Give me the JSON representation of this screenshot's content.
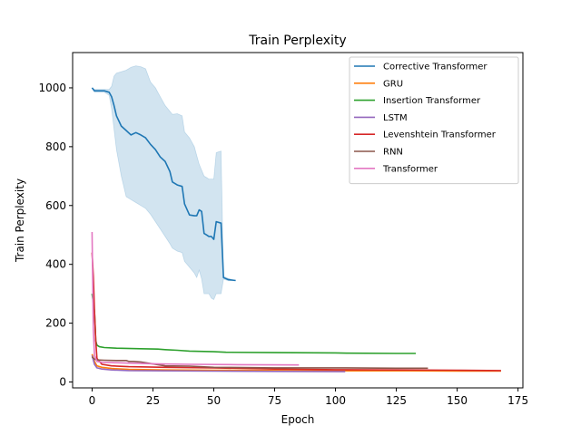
{
  "chart_data": {
    "type": "line",
    "title": "Train Perplexity",
    "xlabel": "Epoch",
    "ylabel": "Train Perplexity",
    "xlim": [
      -8,
      177
    ],
    "ylim": [
      -20,
      1120
    ],
    "xticks": [
      0,
      25,
      50,
      75,
      100,
      125,
      150,
      175
    ],
    "yticks": [
      0,
      200,
      400,
      600,
      800,
      1000
    ],
    "grid": false,
    "legend_position": "top-right",
    "series": [
      {
        "name": "Corrective Transformer",
        "color": "#1f77b4",
        "x": [
          0,
          1,
          3,
          5,
          7,
          8,
          9,
          10,
          12,
          14,
          16,
          18,
          20,
          22,
          24,
          26,
          28,
          30,
          32,
          33,
          35,
          37,
          38,
          40,
          42,
          43,
          44,
          45,
          46,
          47,
          48,
          49,
          50,
          51,
          53,
          54,
          56,
          59
        ],
        "y": [
          1000,
          990,
          990,
          990,
          985,
          970,
          940,
          905,
          870,
          855,
          840,
          848,
          840,
          830,
          808,
          790,
          765,
          750,
          715,
          680,
          670,
          665,
          605,
          568,
          565,
          565,
          585,
          580,
          505,
          500,
          495,
          495,
          485,
          545,
          540,
          355,
          348,
          345
        ],
        "band_upper": [
          1000,
          995,
          995,
          995,
          995,
          1005,
          1040,
          1050,
          1055,
          1060,
          1070,
          1075,
          1072,
          1065,
          1020,
          1000,
          970,
          940,
          920,
          910,
          912,
          905,
          850,
          830,
          800,
          770,
          740,
          720,
          700,
          695,
          690,
          690,
          690,
          780,
          785,
          360,
          352,
          345
        ],
        "band_lower": [
          1000,
          985,
          985,
          985,
          975,
          930,
          860,
          790,
          700,
          630,
          620,
          610,
          600,
          590,
          570,
          545,
          520,
          495,
          470,
          455,
          445,
          440,
          410,
          390,
          370,
          355,
          380,
          350,
          300,
          300,
          300,
          285,
          280,
          300,
          300,
          350,
          344,
          345
        ]
      },
      {
        "name": "GRU",
        "color": "#ff7f0e",
        "x": [
          0,
          1,
          2,
          4,
          8,
          15,
          30,
          50,
          80,
          100,
          130,
          150,
          168
        ],
        "y": [
          95,
          70,
          55,
          50,
          46,
          43,
          41,
          40,
          39,
          38,
          38,
          37,
          37
        ]
      },
      {
        "name": "Insertion Transformer",
        "color": "#2ca02c",
        "x": [
          0,
          1,
          1.5,
          2,
          3,
          5,
          10,
          20,
          27,
          30,
          35,
          40,
          50,
          55,
          75,
          100,
          105,
          125,
          133
        ],
        "y": [
          300,
          240,
          140,
          125,
          120,
          117,
          115,
          113,
          112,
          110,
          108,
          105,
          103,
          101,
          100,
          99,
          98,
          97,
          97
        ]
      },
      {
        "name": "LSTM",
        "color": "#9467bd",
        "x": [
          0,
          1,
          2,
          4,
          8,
          15,
          30,
          50,
          75,
          104
        ],
        "y": [
          90,
          60,
          48,
          44,
          41,
          39,
          38,
          37,
          36,
          35
        ]
      },
      {
        "name": "Levenshtein Transformer",
        "color": "#d62728",
        "x": [
          0,
          0.5,
          1,
          1.5,
          2,
          4,
          8,
          15,
          30,
          50,
          75,
          100,
          125,
          150,
          168
        ],
        "y": [
          440,
          360,
          240,
          140,
          80,
          60,
          55,
          52,
          50,
          48,
          44,
          42,
          41,
          40,
          39
        ]
      },
      {
        "name": "RNN",
        "color": "#8c564b",
        "x": [
          0,
          1,
          2,
          5,
          10,
          14,
          15,
          17,
          20,
          30,
          40,
          50,
          75,
          100,
          125,
          138
        ],
        "y": [
          85,
          78,
          75,
          74,
          73,
          73,
          70,
          70,
          68,
          55,
          54,
          50,
          48,
          48,
          47,
          47
        ]
      },
      {
        "name": "Transformer",
        "color": "#e377c2",
        "x": [
          0,
          0.5,
          1,
          2,
          4,
          8,
          15,
          25,
          40,
          60,
          85
        ],
        "y": [
          510,
          180,
          90,
          70,
          67,
          66,
          64,
          62,
          60,
          59,
          58
        ]
      }
    ]
  }
}
